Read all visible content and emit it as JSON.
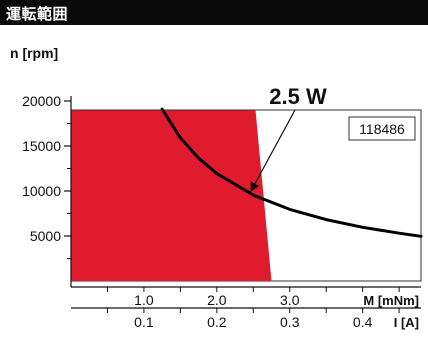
{
  "header": {
    "title": "運転範囲"
  },
  "chart_data": {
    "type": "area",
    "ylabel": "n [rpm]",
    "ylim": [
      0,
      19000
    ],
    "yticks": [
      5000,
      10000,
      15000,
      20000
    ],
    "y_tick_labels": [
      "5000",
      "10000",
      "15000",
      "20000"
    ],
    "torque_axis": {
      "label": "M [mNm]",
      "range": [
        0,
        4.8
      ],
      "ticks": [
        1.0,
        2.0,
        3.0
      ],
      "tick_labels": [
        "1.0",
        "2.0",
        "3.0"
      ]
    },
    "current_axis": {
      "label": "I [A]",
      "range": [
        0,
        0.48
      ],
      "ticks": [
        0.1,
        0.2,
        0.3,
        0.4
      ],
      "tick_labels": [
        "0.1",
        "0.2",
        "0.3",
        "0.4"
      ]
    },
    "product_id": "118486",
    "annotation": "2.5 W",
    "series": [
      {
        "type": "area",
        "color": "#e11b2e",
        "x": [
          0,
          0,
          2.53,
          2.75
        ],
        "y": [
          0,
          19000,
          19000,
          0
        ]
      },
      {
        "type": "line",
        "color": "#000000",
        "x": [
          1.25,
          1.5,
          1.75,
          2.0,
          2.5,
          3.0,
          3.5,
          4.0,
          4.5,
          4.8
        ],
        "y": [
          19100,
          15900,
          13640,
          11940,
          9550,
          7960,
          6820,
          5970,
          5310,
          4970
        ]
      }
    ],
    "grid": false,
    "legend": "none"
  },
  "colors": {
    "envelope": "#e11b2e",
    "curve": "#000000",
    "header": "#0a0a0a"
  }
}
